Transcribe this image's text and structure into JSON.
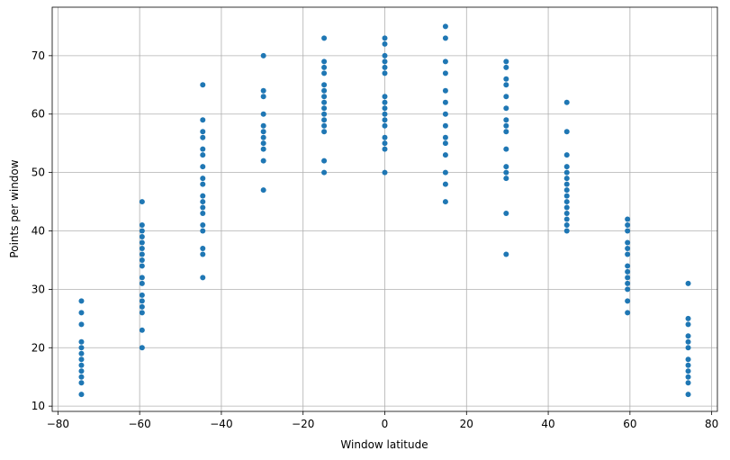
{
  "chart_data": {
    "type": "scatter",
    "xlabel": "Window latitude",
    "ylabel": "Points per window",
    "xlim": [
      -81.4,
      81.4
    ],
    "ylim": [
      9.1,
      78.3
    ],
    "xticks": [
      {
        "value": -80,
        "label": "−80"
      },
      {
        "value": -60,
        "label": "−60"
      },
      {
        "value": -40,
        "label": "−40"
      },
      {
        "value": -20,
        "label": "−20"
      },
      0,
      20,
      40,
      60,
      80
    ],
    "yticks": [
      10,
      20,
      30,
      40,
      50,
      60,
      70
    ],
    "grid": true,
    "series": [
      {
        "color": "#1f77b4",
        "x": [
          -74.25,
          -74.25,
          -74.25,
          -74.25,
          -74.25,
          -74.25,
          -74.25,
          -74.25,
          -74.25,
          -74.25,
          -74.25,
          -74.25,
          -59.4,
          -59.4,
          -59.4,
          -59.4,
          -59.4,
          -59.4,
          -59.4,
          -59.4,
          -59.4,
          -59.4,
          -59.4,
          -59.4,
          -59.4,
          -59.4,
          -59.4,
          -59.4,
          -59.4,
          -44.55,
          -44.55,
          -44.55,
          -44.55,
          -44.55,
          -44.55,
          -44.55,
          -44.55,
          -44.55,
          -44.55,
          -44.55,
          -44.55,
          -44.55,
          -44.55,
          -44.55,
          -44.55,
          -44.55,
          -44.55,
          -29.7,
          -29.7,
          -29.7,
          -29.7,
          -29.7,
          -29.7,
          -29.7,
          -29.7,
          -29.7,
          -29.7,
          -29.7,
          -14.85,
          -14.85,
          -14.85,
          -14.85,
          -14.85,
          -14.85,
          -14.85,
          -14.85,
          -14.85,
          -14.85,
          -14.85,
          -14.85,
          -14.85,
          -14.85,
          -14.85,
          0,
          0,
          0,
          0,
          0,
          0,
          0,
          0,
          0,
          0,
          0,
          0,
          0,
          0,
          0,
          0,
          14.85,
          14.85,
          14.85,
          14.85,
          14.85,
          14.85,
          14.85,
          14.85,
          14.85,
          14.85,
          14.85,
          14.85,
          14.85,
          14.85,
          29.7,
          29.7,
          29.7,
          29.7,
          29.7,
          29.7,
          29.7,
          29.7,
          29.7,
          29.7,
          29.7,
          29.7,
          29.7,
          29.7,
          29.7,
          44.55,
          44.55,
          44.55,
          44.55,
          44.55,
          44.55,
          44.55,
          44.55,
          44.55,
          44.55,
          44.55,
          44.55,
          44.55,
          44.55,
          44.55,
          59.4,
          59.4,
          59.4,
          59.4,
          59.4,
          59.4,
          59.4,
          59.4,
          59.4,
          59.4,
          59.4,
          59.4,
          59.4,
          74.25,
          74.25,
          74.25,
          74.25,
          74.25,
          74.25,
          74.25,
          74.25,
          74.25,
          74.25,
          74.25,
          74.25
        ],
        "values": [
          12,
          14,
          15,
          16,
          17,
          18,
          19,
          20,
          21,
          24,
          26,
          28,
          20,
          23,
          26,
          27,
          28,
          29,
          31,
          32,
          34,
          35,
          36,
          37,
          38,
          39,
          40,
          41,
          45,
          32,
          36,
          37,
          40,
          41,
          43,
          44,
          45,
          46,
          48,
          49,
          51,
          53,
          54,
          56,
          57,
          59,
          65,
          47,
          52,
          54,
          55,
          56,
          57,
          58,
          60,
          63,
          64,
          70,
          50,
          52,
          57,
          58,
          59,
          60,
          61,
          62,
          63,
          64,
          65,
          67,
          68,
          69,
          73,
          50,
          54,
          55,
          56,
          58,
          59,
          60,
          61,
          62,
          63,
          67,
          68,
          69,
          70,
          72,
          73,
          45,
          48,
          50,
          53,
          55,
          56,
          58,
          60,
          62,
          64,
          67,
          69,
          73,
          75,
          36,
          43,
          49,
          50,
          51,
          54,
          57,
          58,
          59,
          61,
          63,
          65,
          66,
          68,
          69,
          40,
          41,
          42,
          43,
          44,
          45,
          46,
          47,
          48,
          49,
          50,
          51,
          53,
          57,
          62,
          26,
          28,
          30,
          31,
          32,
          33,
          34,
          36,
          37,
          38,
          40,
          41,
          42,
          12,
          14,
          15,
          16,
          17,
          18,
          20,
          21,
          22,
          24,
          25,
          31
        ]
      }
    ]
  }
}
